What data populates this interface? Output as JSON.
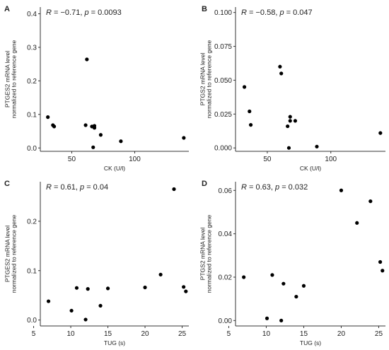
{
  "chart_data": [
    {
      "panel": "A",
      "type": "scatter",
      "annotation": {
        "r_label": "R",
        "r_value": " = −0.71, ",
        "p_label": "p",
        "p_value": " = 0.0093"
      },
      "xlabel": "CK (U/l)",
      "ylabel_line1": "PTGES2 mRNA level",
      "ylabel_line2": "normalized to reference gene",
      "xlim": [
        25,
        143
      ],
      "ylim": [
        -0.01,
        0.42
      ],
      "x_ticks": [
        50,
        100
      ],
      "y_ticks": [
        0.0,
        0.1,
        0.2,
        0.3,
        0.4
      ],
      "y_tick_labels": [
        "0.0",
        "0.1",
        "0.2",
        "0.3",
        "0.4"
      ],
      "grid": false,
      "points": [
        {
          "x": 31,
          "y": 0.092
        },
        {
          "x": 35,
          "y": 0.068
        },
        {
          "x": 36,
          "y": 0.064
        },
        {
          "x": 61,
          "y": 0.068
        },
        {
          "x": 62,
          "y": 0.264
        },
        {
          "x": 66,
          "y": 0.064
        },
        {
          "x": 67,
          "y": 0.002
        },
        {
          "x": 68,
          "y": 0.066
        },
        {
          "x": 68,
          "y": 0.06
        },
        {
          "x": 73,
          "y": 0.039
        },
        {
          "x": 89,
          "y": 0.02
        },
        {
          "x": 139,
          "y": 0.03
        }
      ]
    },
    {
      "panel": "B",
      "type": "scatter",
      "annotation": {
        "r_label": "R",
        "r_value": " = −0.58, ",
        "p_label": "p",
        "p_value": " = 0.047"
      },
      "xlabel": "CK (U/l)",
      "ylabel_line1": "PTGS2 mRNA level",
      "ylabel_line2": "normalized to reference gene",
      "xlim": [
        25,
        143
      ],
      "ylim": [
        -0.0025,
        0.104
      ],
      "x_ticks": [
        50,
        100
      ],
      "y_ticks": [
        0.0,
        0.025,
        0.05,
        0.075,
        0.1
      ],
      "y_tick_labels": [
        "0.000",
        "0.025",
        "0.050",
        "0.075",
        "0.100"
      ],
      "grid": false,
      "points": [
        {
          "x": 32,
          "y": 0.045
        },
        {
          "x": 36,
          "y": 0.027
        },
        {
          "x": 37,
          "y": 0.017
        },
        {
          "x": 60,
          "y": 0.06
        },
        {
          "x": 61,
          "y": 0.055
        },
        {
          "x": 66,
          "y": 0.016
        },
        {
          "x": 67,
          "y": 0.0
        },
        {
          "x": 68,
          "y": 0.023
        },
        {
          "x": 68,
          "y": 0.02
        },
        {
          "x": 72,
          "y": 0.02
        },
        {
          "x": 89,
          "y": 0.001
        },
        {
          "x": 139,
          "y": 0.011
        }
      ]
    },
    {
      "panel": "C",
      "type": "scatter",
      "annotation": {
        "r_label": "R",
        "r_value": " = 0.61, ",
        "p_label": "p",
        "p_value": " = 0.04"
      },
      "xlabel": "TUG (s)",
      "ylabel_line1": "PTGES2 mRNA level",
      "ylabel_line2": "normalized to reference gene",
      "xlim": [
        5.9,
        25.9
      ],
      "ylim": [
        -0.012,
        0.28
      ],
      "x_ticks": [
        5,
        10,
        15,
        20,
        25
      ],
      "y_ticks": [
        0.0,
        0.1,
        0.2
      ],
      "y_tick_labels": [
        "0.0",
        "0.1",
        "0.2"
      ],
      "grid": false,
      "points": [
        {
          "x": 7.0,
          "y": 0.038
        },
        {
          "x": 10.1,
          "y": 0.019
        },
        {
          "x": 10.8,
          "y": 0.065
        },
        {
          "x": 12.0,
          "y": 0.001
        },
        {
          "x": 12.3,
          "y": 0.063
        },
        {
          "x": 14.0,
          "y": 0.029
        },
        {
          "x": 15.0,
          "y": 0.064
        },
        {
          "x": 20.0,
          "y": 0.066
        },
        {
          "x": 22.1,
          "y": 0.092
        },
        {
          "x": 23.9,
          "y": 0.265
        },
        {
          "x": 25.2,
          "y": 0.067
        },
        {
          "x": 25.5,
          "y": 0.058
        }
      ]
    },
    {
      "panel": "D",
      "type": "scatter",
      "annotation": {
        "r_label": "R",
        "r_value": " = 0.63, ",
        "p_label": "p",
        "p_value": " = 0.032"
      },
      "xlabel": "TUG (s)",
      "ylabel_line1": "PTGS2 mRNA level",
      "ylabel_line2": "normalized to reference gene",
      "xlim": [
        5.9,
        25.9
      ],
      "ylim": [
        -0.0025,
        0.064
      ],
      "x_ticks": [
        5,
        10,
        15,
        20,
        25
      ],
      "y_ticks": [
        0.0,
        0.02,
        0.04,
        0.06
      ],
      "y_tick_labels": [
        "0.00",
        "0.02",
        "0.04",
        "0.06"
      ],
      "grid": false,
      "points": [
        {
          "x": 7.0,
          "y": 0.02
        },
        {
          "x": 10.1,
          "y": 0.001
        },
        {
          "x": 10.8,
          "y": 0.021
        },
        {
          "x": 12.0,
          "y": 0.0
        },
        {
          "x": 12.3,
          "y": 0.017
        },
        {
          "x": 14.0,
          "y": 0.011
        },
        {
          "x": 15.0,
          "y": 0.016
        },
        {
          "x": 20.0,
          "y": 0.06
        },
        {
          "x": 22.1,
          "y": 0.045
        },
        {
          "x": 23.9,
          "y": 0.055
        },
        {
          "x": 25.2,
          "y": 0.027
        },
        {
          "x": 25.5,
          "y": 0.023
        }
      ]
    }
  ],
  "colors": {
    "point": "#000000",
    "axis": "#333333",
    "text": "#222222"
  }
}
